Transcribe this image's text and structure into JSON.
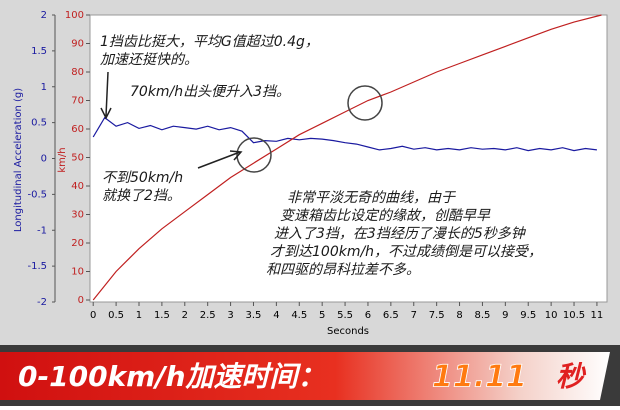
{
  "chart_data": {
    "type": "line",
    "xlabel": "Seconds",
    "ylabel": "Longitudinal Acceleration (g)",
    "y2label": "km/h",
    "xlim": [
      -0.07,
      11.22
    ],
    "xticks": [
      0,
      0.5,
      1,
      1.5,
      2,
      2.5,
      3,
      3.5,
      4,
      4.5,
      5,
      5.5,
      6,
      6.5,
      7,
      7.5,
      8,
      8.5,
      9,
      9.5,
      10,
      10.5,
      11
    ],
    "ylim": [
      -2,
      2
    ],
    "yticks": [
      2,
      1.5,
      1,
      0.5,
      0,
      -0.5,
      -1,
      -1.5,
      -2
    ],
    "y2lim": [
      -0.7,
      100
    ],
    "y2ticks": [
      100,
      90,
      80,
      70,
      60,
      50,
      40,
      30,
      20,
      10,
      0
    ],
    "series": [
      {
        "color": "#1a1aa0",
        "x": [
          0,
          0.25,
          0.5,
          0.75,
          1,
          1.25,
          1.5,
          1.75,
          2,
          2.25,
          2.5,
          2.75,
          3,
          3.25,
          3.5,
          3.75,
          4,
          4.25,
          4.5,
          4.75,
          5,
          5.25,
          5.5,
          5.75,
          6,
          6.25,
          6.5,
          6.75,
          7,
          7.25,
          7.5,
          7.75,
          8,
          8.25,
          8.5,
          8.75,
          9,
          9.25,
          9.5,
          9.75,
          10,
          10.25,
          10.5,
          10.75,
          11
        ],
        "values": [
          0.3,
          0.57,
          0.45,
          0.5,
          0.42,
          0.46,
          0.4,
          0.45,
          0.43,
          0.41,
          0.45,
          0.4,
          0.43,
          0.38,
          0.22,
          0.25,
          0.24,
          0.28,
          0.26,
          0.28,
          0.27,
          0.25,
          0.22,
          0.2,
          0.16,
          0.12,
          0.14,
          0.17,
          0.13,
          0.15,
          0.12,
          0.14,
          0.12,
          0.15,
          0.13,
          0.14,
          0.12,
          0.15,
          0.11,
          0.14,
          0.12,
          0.15,
          0.11,
          0.14,
          0.12
        ]
      },
      {
        "color": "#c02020",
        "axis": "y2",
        "x": [
          0,
          0.5,
          1,
          1.5,
          2,
          2.5,
          3,
          3.5,
          4,
          4.5,
          5,
          5.5,
          6,
          6.5,
          7,
          7.5,
          8,
          8.5,
          9,
          9.5,
          10,
          10.5,
          11.1
        ],
        "values": [
          0,
          10,
          18,
          25,
          31,
          37,
          43,
          48,
          53,
          58,
          62,
          66,
          70,
          73,
          76.5,
          80,
          83,
          86,
          89,
          92,
          95,
          97.5,
          100
        ]
      }
    ],
    "annotations": [
      {
        "lines": [
          "1挡齿比挺大，平均G值超过0.4g，",
          "加速还挺快的。"
        ]
      },
      {
        "lines": [
          "70km/h出头便升入3挡。"
        ]
      },
      {
        "lines": [
          "不到50km/h",
          "就换了2挡。"
        ]
      },
      {
        "lines": [
          "非常平淡无奇的曲线，由于",
          "变速箱齿比设定的缘故，创酷早早",
          "进入了3挡，在3挡经历了漫长的5秒多钟",
          "才到达100km/h，不过成绩倒是可以接受，",
          "和四驱的昂科拉差不多。"
        ]
      }
    ]
  },
  "banner": {
    "label": "0-100km/h加速时间：",
    "value": "11.11",
    "unit": "秒"
  }
}
